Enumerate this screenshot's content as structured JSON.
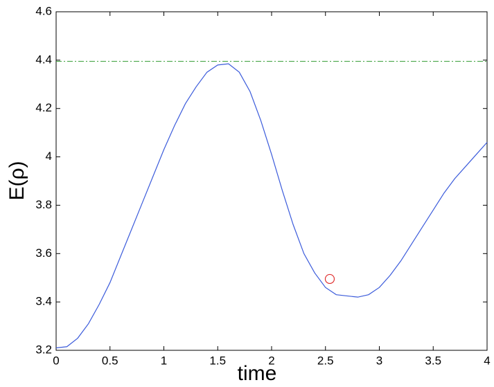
{
  "chart_data": {
    "type": "line",
    "x_label": "time",
    "y_label": "E(ρ)",
    "xlim": [
      0,
      4
    ],
    "ylim": [
      3.2,
      4.6
    ],
    "xticks": [
      0,
      0.5,
      1,
      1.5,
      2,
      2.5,
      3,
      3.5,
      4
    ],
    "yticks": [
      3.2,
      3.4,
      3.6,
      3.8,
      4,
      4.2,
      4.4,
      4.6
    ],
    "grid": false,
    "x": [
      0,
      0.1,
      0.2,
      0.3,
      0.4,
      0.5,
      0.6,
      0.7,
      0.8,
      0.9,
      1.0,
      1.1,
      1.2,
      1.3,
      1.4,
      1.5,
      1.6,
      1.7,
      1.8,
      1.9,
      2.0,
      2.1,
      2.2,
      2.3,
      2.4,
      2.5,
      2.6,
      2.7,
      2.8,
      2.9,
      3.0,
      3.1,
      3.2,
      3.3,
      3.4,
      3.5,
      3.6,
      3.7,
      3.8,
      3.9,
      4.0
    ],
    "series": [
      {
        "color": "#3b5bdb",
        "values": [
          3.21,
          3.215,
          3.25,
          3.31,
          3.39,
          3.48,
          3.59,
          3.7,
          3.81,
          3.92,
          4.03,
          4.13,
          4.22,
          4.29,
          4.35,
          4.38,
          4.385,
          4.35,
          4.27,
          4.15,
          4.01,
          3.86,
          3.72,
          3.6,
          3.52,
          3.46,
          3.43,
          3.425,
          3.42,
          3.43,
          3.46,
          3.51,
          3.57,
          3.64,
          3.71,
          3.78,
          3.85,
          3.91,
          3.96,
          4.01,
          4.06
        ]
      }
    ],
    "hlines": [
      {
        "value": 4.395,
        "color": "#2e9a2e"
      }
    ],
    "markers": [
      {
        "x": 2.54,
        "y": 3.495,
        "color": "#e03030"
      }
    ]
  }
}
